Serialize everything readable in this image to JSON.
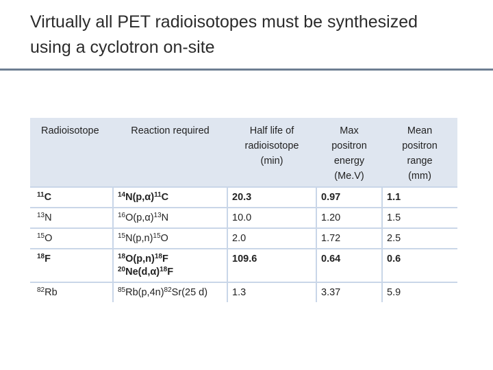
{
  "header": {
    "title": [
      "Virtually all PET radioisotopes must be synthesized",
      "using a cyclotron on-site"
    ]
  },
  "table": {
    "columns": [
      [
        "Radioisotope"
      ],
      [
        "Reaction required"
      ],
      [
        "Half life of",
        "radioisotope",
        "(min)"
      ],
      [
        "Max",
        "positron",
        "energy",
        "(Me.V)"
      ],
      [
        "Mean",
        "positron",
        "range",
        "(mm)"
      ]
    ],
    "rows": [
      {
        "bold": true,
        "cells": [
          [
            [
              {
                "sup": "11"
              },
              {
                "text": "C"
              }
            ]
          ],
          [
            [
              {
                "sup": "14"
              },
              {
                "text": "N(p,α)"
              },
              {
                "sup": "11"
              },
              {
                "text": "C"
              }
            ]
          ],
          [
            [
              {
                "text": "20.3"
              }
            ]
          ],
          [
            [
              {
                "text": "0.97"
              }
            ]
          ],
          [
            [
              {
                "text": "1.1"
              }
            ]
          ]
        ]
      },
      {
        "bold": false,
        "cells": [
          [
            [
              {
                "sup": "13"
              },
              {
                "text": "N"
              }
            ]
          ],
          [
            [
              {
                "sup": "16"
              },
              {
                "text": "O(p,α)"
              },
              {
                "sup": "13"
              },
              {
                "text": "N"
              }
            ]
          ],
          [
            [
              {
                "text": "10.0"
              }
            ]
          ],
          [
            [
              {
                "text": "1.20"
              }
            ]
          ],
          [
            [
              {
                "text": "1.5"
              }
            ]
          ]
        ]
      },
      {
        "bold": false,
        "cells": [
          [
            [
              {
                "sup": "15"
              },
              {
                "text": "O"
              }
            ]
          ],
          [
            [
              {
                "sup": "15"
              },
              {
                "text": "N(p,n)"
              },
              {
                "sup": "15"
              },
              {
                "text": "O"
              }
            ]
          ],
          [
            [
              {
                "text": "2.0"
              }
            ]
          ],
          [
            [
              {
                "text": "1.72"
              }
            ]
          ],
          [
            [
              {
                "text": "2.5"
              }
            ]
          ]
        ]
      },
      {
        "bold": true,
        "cells": [
          [
            [
              {
                "sup": "18"
              },
              {
                "text": "F"
              }
            ]
          ],
          [
            [
              {
                "sup": "18"
              },
              {
                "text": "O(p,n)"
              },
              {
                "sup": "18"
              },
              {
                "text": "F"
              }
            ],
            [
              {
                "sup": "20"
              },
              {
                "text": "Ne(d,α)"
              },
              {
                "sup": "18"
              },
              {
                "text": "F"
              }
            ]
          ],
          [
            [
              {
                "text": "109.6"
              }
            ]
          ],
          [
            [
              {
                "text": "0.64"
              }
            ]
          ],
          [
            [
              {
                "text": "0.6"
              }
            ]
          ]
        ]
      },
      {
        "bold": false,
        "cells": [
          [
            [
              {
                "sup": "82"
              },
              {
                "text": "Rb"
              }
            ]
          ],
          [
            [
              {
                "sup": "85"
              },
              {
                "text": "Rb(p,4n)"
              },
              {
                "sup": "82"
              },
              {
                "text": "Sr(25 d)"
              }
            ]
          ],
          [
            [
              {
                "text": "1.3"
              }
            ]
          ],
          [
            [
              {
                "text": "3.37"
              }
            ]
          ],
          [
            [
              {
                "text": "5.9"
              }
            ]
          ]
        ]
      }
    ]
  }
}
